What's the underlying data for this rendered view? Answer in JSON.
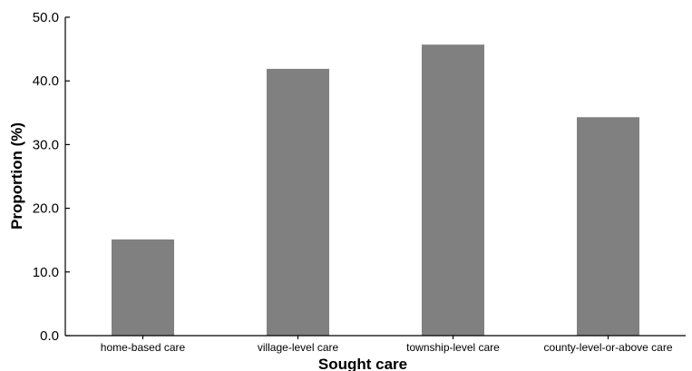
{
  "chart_data": {
    "type": "bar",
    "title": "",
    "xlabel": "Sought care",
    "ylabel": "Proportion (%)",
    "categories": [
      "home-based care",
      "village-level care",
      "township-level care",
      "county-level-or-above care"
    ],
    "values": [
      15.1,
      41.9,
      45.7,
      34.3
    ],
    "ylim": [
      0,
      50
    ],
    "yticks": [
      "0.0",
      "10.0",
      "20.0",
      "30.0",
      "40.0",
      "50.0"
    ],
    "grid": false,
    "legend": "none",
    "bar_color": "#808080"
  }
}
